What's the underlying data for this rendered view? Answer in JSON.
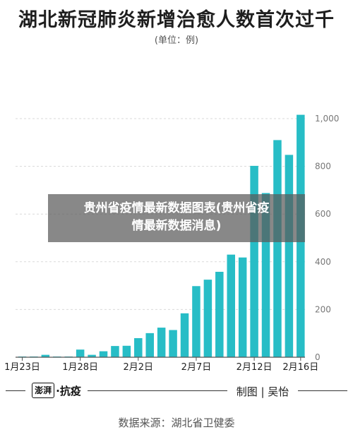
{
  "title": "湖北新冠肺炎新增治愈人数首次过千",
  "unit": "(单位：例)",
  "overlay": {
    "line1": "贵州省疫情最新数据图表(贵州省疫",
    "line2": "情最新数据消息)"
  },
  "footer": {
    "logo_text": "澎湃",
    "logo_label": "·抗疫",
    "credit": "制图 | 吴怡",
    "source": "数据来源：湖北省卫健委"
  },
  "colors": {
    "bar": "#27bdc6",
    "grid": "#d9d9d9",
    "axis": "#555555"
  },
  "chart_data": {
    "type": "bar",
    "title": "湖北新冠肺炎新增治愈人数首次过千",
    "categories": [
      "1月23日",
      "1月24日",
      "1月25日",
      "1月26日",
      "1月27日",
      "1月28日",
      "1月29日",
      "1月30日",
      "1月31日",
      "2月1日",
      "2月2日",
      "2月3日",
      "2月4日",
      "2月5日",
      "2月6日",
      "2月7日",
      "2月8日",
      "2月9日",
      "2月10日",
      "2月11日",
      "2月12日",
      "2月13日",
      "2月14日",
      "2月15日",
      "2月16日"
    ],
    "x_tick_labels": [
      "1月23日",
      "1月28日",
      "2月2日",
      "2月7日",
      "2月12日",
      "2月16日"
    ],
    "values": [
      3,
      3,
      10,
      3,
      3,
      32,
      10,
      25,
      47,
      48,
      80,
      101,
      124,
      114,
      184,
      298,
      325,
      358,
      430,
      418,
      802,
      688,
      910,
      848,
      1016
    ],
    "ylim": [
      0,
      1000
    ],
    "yticks": [
      "1,000",
      "800",
      "600",
      "400",
      "200",
      "0"
    ],
    "ytick_values": [
      1000,
      800,
      600,
      400,
      200,
      0
    ],
    "grid": true,
    "ylabel": "",
    "xlabel": ""
  }
}
